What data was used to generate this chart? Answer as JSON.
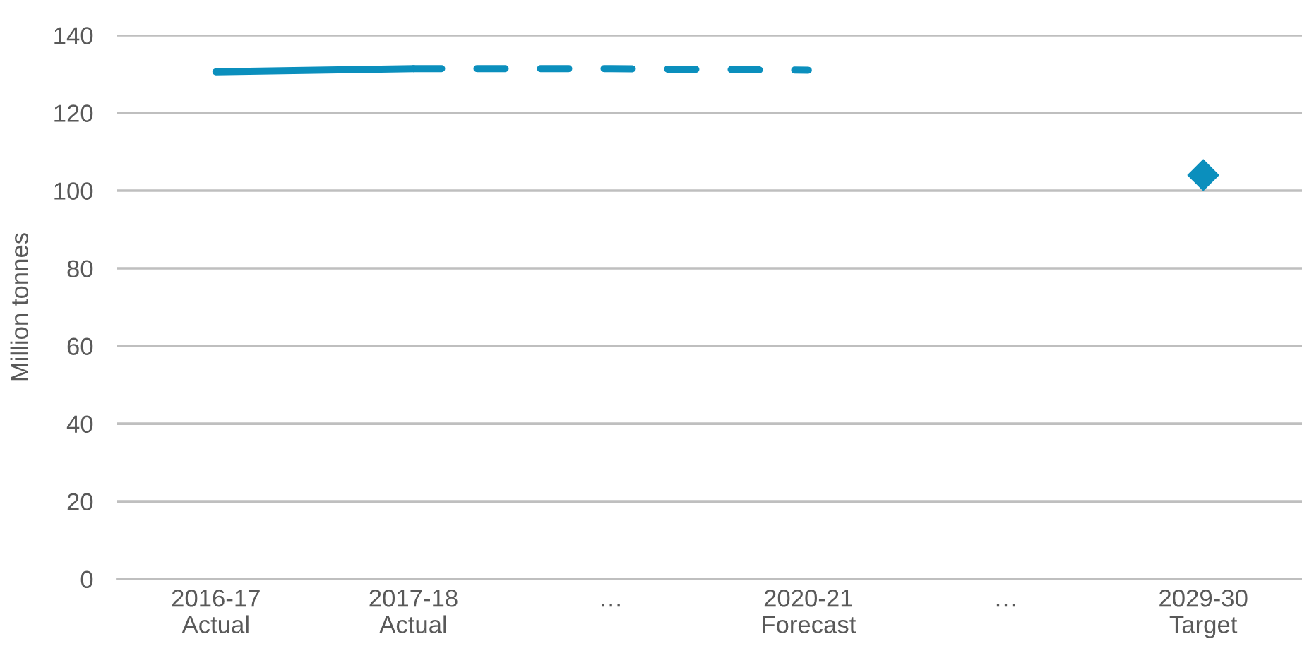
{
  "chart_data": {
    "type": "line",
    "ylabel": "Million tonnes",
    "categories": [
      "2016-17\nActual",
      "2017-18\nActual",
      "…",
      "2020-21\nForecast",
      "…",
      "2029-30\nTarget"
    ],
    "series": [
      {
        "color": "#0b8fbd",
        "line_style": "solid",
        "values": [
          130.6,
          131.4,
          null,
          null,
          null,
          null
        ]
      },
      {
        "color": "#0b8fbd",
        "line_style": "dashed",
        "values": [
          null,
          131.4,
          131.4,
          131.0,
          null,
          null
        ]
      },
      {
        "type": "scatter",
        "color": "#0b8fbd",
        "marker": "diamond",
        "values": [
          null,
          null,
          null,
          null,
          null,
          104
        ]
      }
    ],
    "ylim": [
      0,
      140
    ],
    "yticks": [
      0,
      20,
      40,
      60,
      80,
      100,
      120,
      140
    ],
    "grid": "y"
  }
}
